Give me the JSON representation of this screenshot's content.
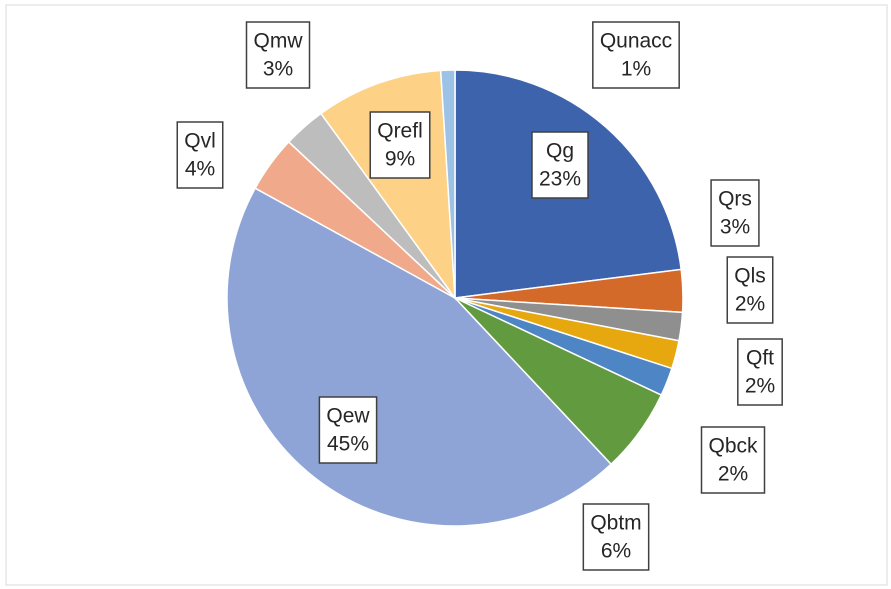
{
  "chart_data": {
    "type": "pie",
    "categories": [
      "Qg",
      "Qrs",
      "Qls",
      "Qft",
      "Qbck",
      "Qbtm",
      "Qew",
      "Qvl",
      "Qmw",
      "Qrefl",
      "Qunacc"
    ],
    "values": [
      23,
      3,
      2,
      2,
      2,
      6,
      45,
      4,
      3,
      9,
      1
    ],
    "value_labels": [
      "23%",
      "3%",
      "2%",
      "2%",
      "2%",
      "6%",
      "45%",
      "4%",
      "3%",
      "9%",
      "1%"
    ],
    "colors": [
      "#3e63ad",
      "#d46a2a",
      "#8f8f8f",
      "#e6a70f",
      "#4d85c5",
      "#629b3f",
      "#8fa4d6",
      "#f0a98b",
      "#bdbdbd",
      "#fdd186",
      "#9cc2e6"
    ]
  }
}
